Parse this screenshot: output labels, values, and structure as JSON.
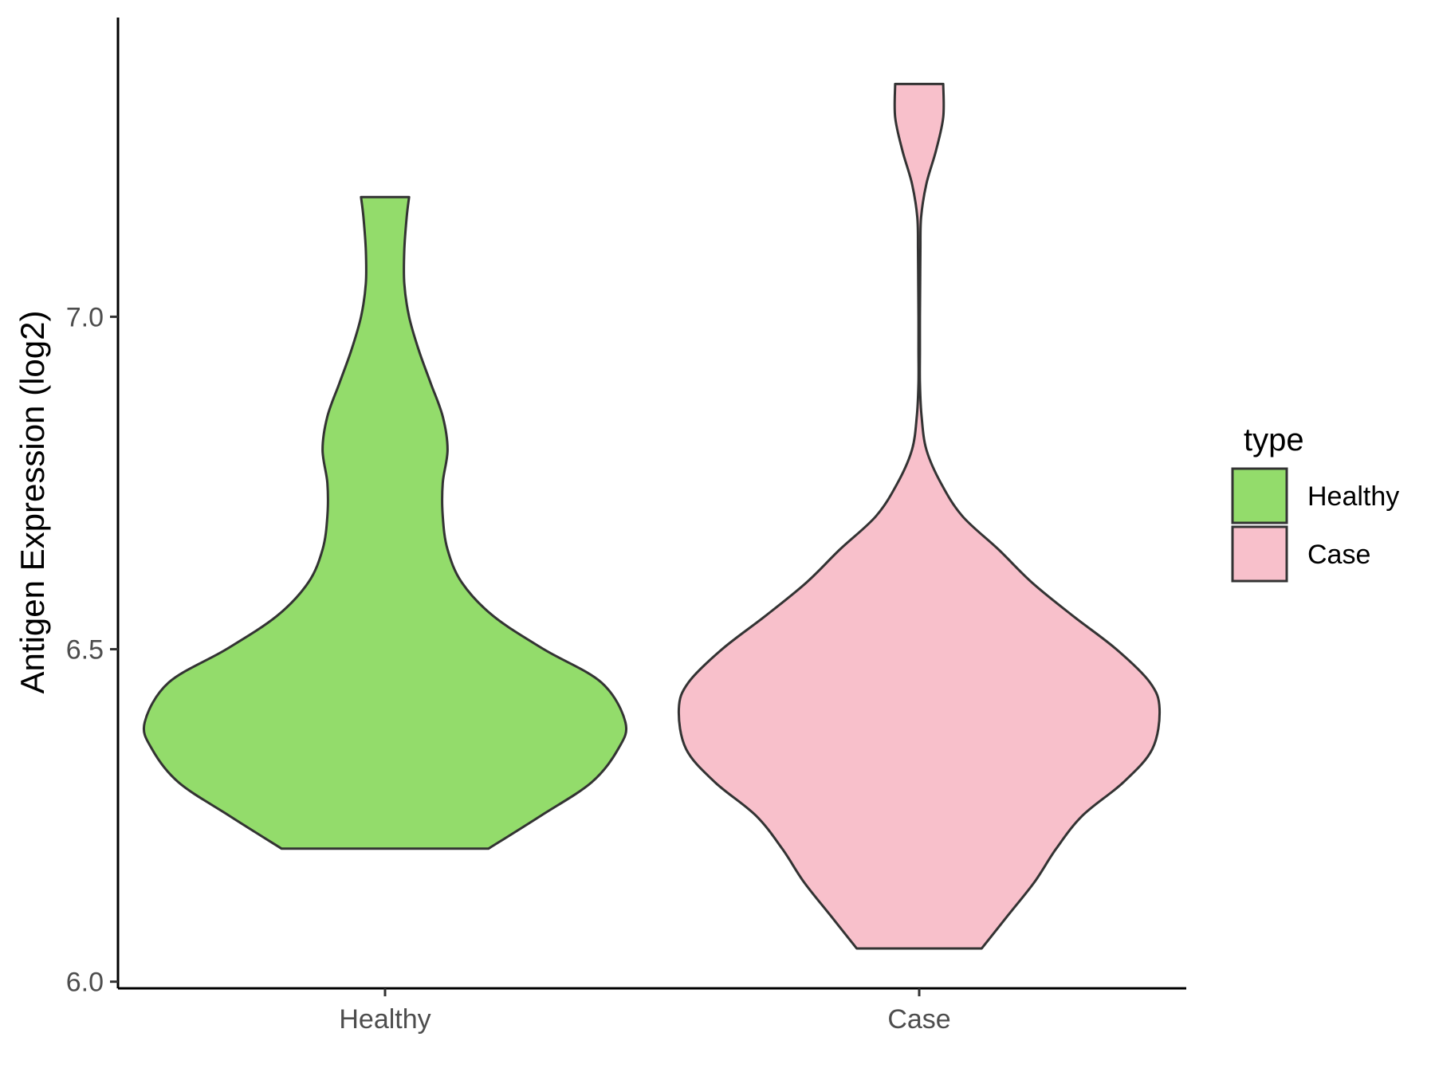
{
  "chart_data": {
    "type": "violin",
    "ylabel": "Antigen Expression (log2)",
    "xlabel": "",
    "ylim": [
      5.99,
      7.45
    ],
    "yticks": [
      6.0,
      6.5,
      7.0
    ],
    "ytick_labels": [
      "6.0",
      "6.5",
      "7.0"
    ],
    "categories": [
      "Healthy",
      "Case"
    ],
    "grid": false,
    "legend": {
      "title": "type",
      "position": "right",
      "entries": [
        "Healthy",
        "Case"
      ]
    },
    "colors": {
      "Healthy": "#93dc6b",
      "Case": "#f8c0cb",
      "outline": "#333333"
    },
    "series": [
      {
        "name": "Healthy",
        "min": 6.2,
        "max": 7.18,
        "density_profile": [
          [
            6.2,
            0.43
          ],
          [
            6.25,
            0.65
          ],
          [
            6.3,
            0.86
          ],
          [
            6.35,
            0.97
          ],
          [
            6.39,
            1.0
          ],
          [
            6.45,
            0.9
          ],
          [
            6.5,
            0.66
          ],
          [
            6.55,
            0.45
          ],
          [
            6.6,
            0.32
          ],
          [
            6.65,
            0.26
          ],
          [
            6.7,
            0.24
          ],
          [
            6.75,
            0.24
          ],
          [
            6.8,
            0.26
          ],
          [
            6.85,
            0.24
          ],
          [
            6.9,
            0.19
          ],
          [
            6.95,
            0.14
          ],
          [
            7.0,
            0.1
          ],
          [
            7.05,
            0.08
          ],
          [
            7.1,
            0.08
          ],
          [
            7.15,
            0.09
          ],
          [
            7.18,
            0.1
          ]
        ]
      },
      {
        "name": "Case",
        "min": 6.05,
        "max": 7.35,
        "density_profile": [
          [
            6.05,
            0.26
          ],
          [
            6.1,
            0.37
          ],
          [
            6.15,
            0.48
          ],
          [
            6.2,
            0.57
          ],
          [
            6.25,
            0.68
          ],
          [
            6.3,
            0.85
          ],
          [
            6.35,
            0.97
          ],
          [
            6.41,
            1.0
          ],
          [
            6.45,
            0.96
          ],
          [
            6.5,
            0.82
          ],
          [
            6.55,
            0.64
          ],
          [
            6.6,
            0.47
          ],
          [
            6.65,
            0.33
          ],
          [
            6.7,
            0.18
          ],
          [
            6.75,
            0.09
          ],
          [
            6.8,
            0.03
          ],
          [
            6.85,
            0.01
          ],
          [
            6.9,
            0.003
          ],
          [
            6.95,
            0.003
          ],
          [
            7.0,
            0.003
          ],
          [
            7.05,
            0.004
          ],
          [
            7.1,
            0.005
          ],
          [
            7.15,
            0.008
          ],
          [
            7.2,
            0.03
          ],
          [
            7.25,
            0.07
          ],
          [
            7.3,
            0.1
          ],
          [
            7.35,
            0.1
          ]
        ]
      }
    ]
  }
}
